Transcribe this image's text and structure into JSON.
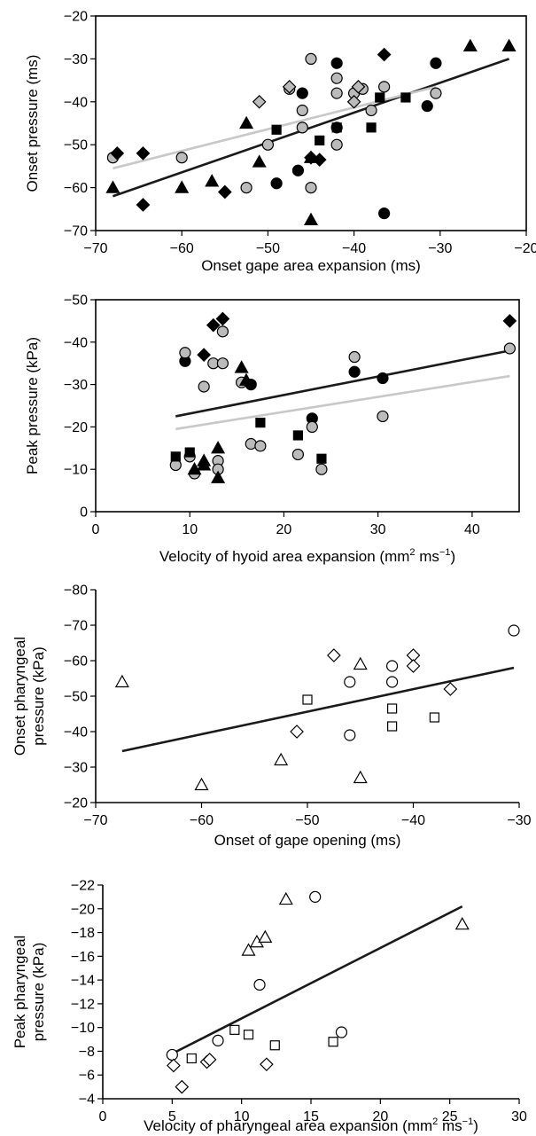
{
  "chart_data": [
    {
      "id": "panel-a",
      "type": "scatter",
      "xlabel": "Onset gape area expansion (ms)",
      "ylabel": "Onset pressure (ms)",
      "xlim": [
        -70,
        -20
      ],
      "ylim": [
        -70,
        -20
      ],
      "xticks": [
        -70,
        -60,
        -50,
        -40,
        -30,
        -20
      ],
      "yticks": [
        -70,
        -60,
        -50,
        -40,
        -30,
        -20
      ],
      "y_inverted": false,
      "series": [
        {
          "marker": "circle",
          "fill": "#000000",
          "points": [
            [
              -49,
              -59
            ],
            [
              -46.5,
              -56
            ],
            [
              -46,
              -38
            ],
            [
              -42,
              -31
            ],
            [
              -42,
              -46
            ],
            [
              -36.5,
              -66
            ],
            [
              -31.5,
              -41
            ],
            [
              -30.5,
              -31
            ]
          ]
        },
        {
          "marker": "circle",
          "fill": "#bbbbbb",
          "points": [
            [
              -68,
              -53
            ],
            [
              -60,
              -53
            ],
            [
              -52.5,
              -60
            ],
            [
              -50,
              -50
            ],
            [
              -47.5,
              -37
            ],
            [
              -46,
              -42
            ],
            [
              -46,
              -46
            ],
            [
              -45,
              -30
            ],
            [
              -45,
              -60
            ],
            [
              -42,
              -34.5
            ],
            [
              -42,
              -38
            ],
            [
              -42,
              -50
            ],
            [
              -40,
              -38
            ],
            [
              -39,
              -37
            ],
            [
              -38,
              -42
            ],
            [
              -36.5,
              -36.5
            ],
            [
              -30.5,
              -38
            ]
          ]
        },
        {
          "marker": "triangle",
          "fill": "#000000",
          "points": [
            [
              -68,
              -60
            ],
            [
              -60,
              -60
            ],
            [
              -56.5,
              -58.5
            ],
            [
              -52.5,
              -45
            ],
            [
              -51,
              -54
            ],
            [
              -45,
              -53
            ],
            [
              -45,
              -67.5
            ],
            [
              -26.5,
              -27
            ],
            [
              -22,
              -27
            ]
          ]
        },
        {
          "marker": "square",
          "fill": "#000000",
          "points": [
            [
              -49,
              -46.5
            ],
            [
              -44,
              -49
            ],
            [
              -42,
              -46
            ],
            [
              -37,
              -39
            ],
            [
              -38,
              -46
            ],
            [
              -34,
              -39
            ]
          ]
        },
        {
          "marker": "diamond",
          "fill": "#000000",
          "points": [
            [
              -67.5,
              -52
            ],
            [
              -64.5,
              -64
            ],
            [
              -64.5,
              -52
            ],
            [
              -55,
              -61
            ],
            [
              -45,
              -53
            ],
            [
              -44,
              -53.5
            ],
            [
              -36.5,
              -29
            ]
          ]
        },
        {
          "marker": "diamond",
          "fill": "#bbbbbb",
          "points": [
            [
              -51,
              -40
            ],
            [
              -47.5,
              -36.5
            ],
            [
              -40,
              -40
            ],
            [
              -39.5,
              -36.5
            ]
          ]
        }
      ],
      "fit_lines": [
        {
          "color": "#1a1a1a",
          "from": [
            -68,
            -62
          ],
          "to": [
            -22,
            -30
          ]
        },
        {
          "color": "#c8c8c8",
          "from": [
            -68,
            -55.5
          ],
          "to": [
            -30.5,
            -36.5
          ]
        }
      ]
    },
    {
      "id": "panel-b",
      "type": "scatter",
      "xlabel": "Velocity of hyoid area expansion (mm",
      "xlabel_sup": "2",
      "xlabel_rest": " ms",
      "xlabel_sup2": "−1",
      "xlabel_end": ")",
      "ylabel": "Peak pressure (kPa)",
      "xlim": [
        0,
        45
      ],
      "ylim": [
        0,
        -50
      ],
      "xticks": [
        0,
        10,
        20,
        30,
        40
      ],
      "yticks": [
        0,
        -10,
        -20,
        -30,
        -40,
        -50
      ],
      "series": [
        {
          "marker": "circle",
          "fill": "#000000",
          "points": [
            [
              9.5,
              -35.5
            ],
            [
              16.5,
              -30
            ],
            [
              23,
              -22
            ],
            [
              27.5,
              -33
            ],
            [
              30.5,
              -31.5
            ]
          ]
        },
        {
          "marker": "circle",
          "fill": "#bbbbbb",
          "points": [
            [
              8.5,
              -11
            ],
            [
              9.5,
              -37.5
            ],
            [
              10,
              -13
            ],
            [
              10.5,
              -9
            ],
            [
              11.5,
              -29.5
            ],
            [
              12.5,
              -35
            ],
            [
              13,
              -12
            ],
            [
              13,
              -10
            ],
            [
              13.5,
              -42.5
            ],
            [
              13.5,
              -35
            ],
            [
              15.5,
              -30.5
            ],
            [
              16.5,
              -16
            ],
            [
              17.5,
              -15.5
            ],
            [
              21.5,
              -13.5
            ],
            [
              23,
              -20
            ],
            [
              24,
              -10
            ],
            [
              27.5,
              -36.5
            ],
            [
              30.5,
              -22.5
            ],
            [
              44,
              -38.5
            ]
          ]
        },
        {
          "marker": "triangle",
          "fill": "#000000",
          "points": [
            [
              10.5,
              -10
            ],
            [
              11.5,
              -11
            ],
            [
              11.5,
              -12
            ],
            [
              13,
              -8
            ],
            [
              13,
              -15
            ],
            [
              15.5,
              -34
            ],
            [
              16,
              -31
            ]
          ]
        },
        {
          "marker": "square",
          "fill": "#000000",
          "points": [
            [
              8.5,
              -13
            ],
            [
              10,
              -14
            ],
            [
              17.5,
              -21
            ],
            [
              21.5,
              -18
            ],
            [
              24,
              -12.5
            ]
          ]
        },
        {
          "marker": "diamond",
          "fill": "#000000",
          "points": [
            [
              11.5,
              -37
            ],
            [
              12.5,
              -44
            ],
            [
              13.5,
              -45.5
            ],
            [
              44,
              -45
            ]
          ]
        }
      ],
      "fit_lines": [
        {
          "color": "#1a1a1a",
          "from": [
            8.5,
            -22.5
          ],
          "to": [
            44,
            -38
          ]
        },
        {
          "color": "#c8c8c8",
          "from": [
            8.5,
            -19.5
          ],
          "to": [
            44,
            -32
          ]
        }
      ]
    },
    {
      "id": "panel-c",
      "type": "scatter",
      "xlabel": "Onset of gape opening (ms)",
      "ylabel_lines": [
        "Onset pharyngeal",
        "pressure (kPa)"
      ],
      "xlim": [
        -70,
        -30
      ],
      "ylim": [
        -20,
        -80
      ],
      "xticks": [
        -70,
        -60,
        -50,
        -40,
        -30
      ],
      "yticks": [
        -20,
        -30,
        -40,
        -50,
        -60,
        -70,
        -80
      ],
      "series": [
        {
          "marker": "circle",
          "fill": "#ffffff",
          "points": [
            [
              -46,
              -54
            ],
            [
              -46,
              -39
            ],
            [
              -42,
              -58.5
            ],
            [
              -42,
              -54
            ],
            [
              -30.5,
              -68.5
            ]
          ]
        },
        {
          "marker": "triangle",
          "fill": "#ffffff",
          "points": [
            [
              -67.5,
              -54
            ],
            [
              -60,
              -25
            ],
            [
              -52.5,
              -32
            ],
            [
              -45,
              -59
            ],
            [
              -45,
              -27
            ]
          ]
        },
        {
          "marker": "square",
          "fill": "#ffffff",
          "points": [
            [
              -50,
              -49
            ],
            [
              -42,
              -46.5
            ],
            [
              -42,
              -41.5
            ],
            [
              -38,
              -44
            ]
          ]
        },
        {
          "marker": "diamond",
          "fill": "#ffffff",
          "points": [
            [
              -51,
              -40
            ],
            [
              -47.5,
              -61.5
            ],
            [
              -40,
              -61.5
            ],
            [
              -40,
              -58.5
            ],
            [
              -36.5,
              -52
            ]
          ]
        }
      ],
      "fit_lines": [
        {
          "color": "#1a1a1a",
          "from": [
            -67.5,
            -34.5
          ],
          "to": [
            -30.5,
            -58
          ]
        }
      ]
    },
    {
      "id": "panel-d",
      "type": "scatter",
      "xlabel": "Velocity of pharyngeal area expansion (mm",
      "xlabel_sup": "2",
      "xlabel_rest": " ms",
      "xlabel_sup2": "−1",
      "xlabel_end": ")",
      "ylabel_lines": [
        "Peak pharyngeal",
        "pressure (kPa)"
      ],
      "xlim": [
        0,
        30
      ],
      "ylim": [
        -4,
        -22
      ],
      "xticks": [
        0,
        5,
        10,
        15,
        20,
        25,
        30
      ],
      "yticks": [
        -4,
        -6,
        -8,
        -10,
        -12,
        -14,
        -16,
        -18,
        -20,
        -22
      ],
      "series": [
        {
          "marker": "circle",
          "fill": "#ffffff",
          "points": [
            [
              5,
              -7.7
            ],
            [
              8.3,
              -8.9
            ],
            [
              11.3,
              -13.6
            ],
            [
              15.3,
              -21
            ],
            [
              17.2,
              -9.6
            ]
          ]
        },
        {
          "marker": "triangle",
          "fill": "#ffffff",
          "points": [
            [
              10.5,
              -16.5
            ],
            [
              11.1,
              -17.2
            ],
            [
              11.7,
              -17.6
            ],
            [
              13.2,
              -20.8
            ],
            [
              25.9,
              -18.7
            ]
          ]
        },
        {
          "marker": "square",
          "fill": "#ffffff",
          "points": [
            [
              6.4,
              -7.4
            ],
            [
              9.5,
              -9.8
            ],
            [
              10.5,
              -9.4
            ],
            [
              12.4,
              -8.5
            ],
            [
              16.6,
              -8.8
            ]
          ]
        },
        {
          "marker": "diamond",
          "fill": "#ffffff",
          "points": [
            [
              5.1,
              -6.8
            ],
            [
              5.7,
              -5
            ],
            [
              7.5,
              -7.1
            ],
            [
              7.7,
              -7.3
            ],
            [
              11.8,
              -6.9
            ]
          ]
        }
      ],
      "fit_lines": [
        {
          "color": "#1a1a1a",
          "from": [
            5,
            -7.8
          ],
          "to": [
            25.9,
            -20.2
          ]
        }
      ]
    }
  ]
}
